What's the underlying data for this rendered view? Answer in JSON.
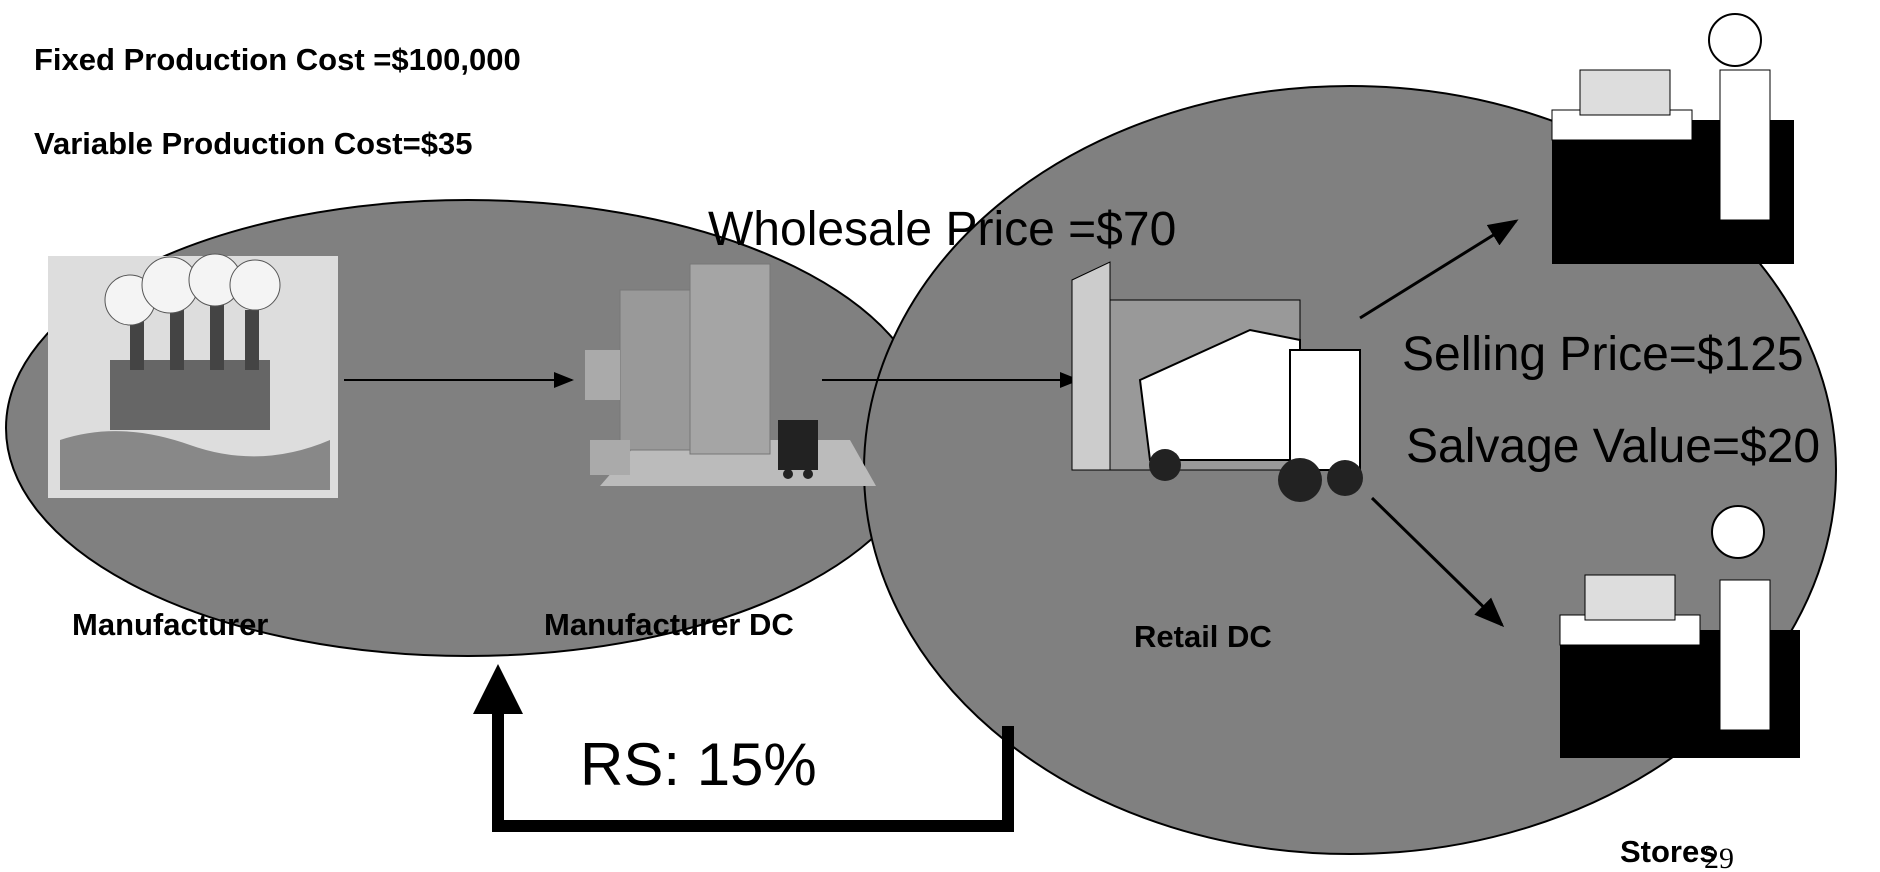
{
  "header": {
    "fixed_cost": "Fixed Production Cost =$100,000",
    "variable_cost": "Variable Production Cost=$35"
  },
  "prices": {
    "wholesale": "Wholesale Price =$70",
    "selling": "Selling Price=$125",
    "salvage": "Salvage Value=$20"
  },
  "nodes": [
    {
      "label": "Manufacturer"
    },
    {
      "label": "Manufacturer DC"
    },
    {
      "label": "Retail DC"
    },
    {
      "label": "Stores"
    }
  ],
  "revenue_sharing": "RS: 15%",
  "page_number": "29"
}
